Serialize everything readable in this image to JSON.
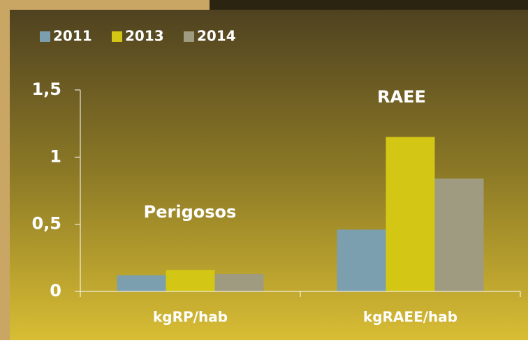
{
  "chart_data": {
    "type": "bar",
    "categories": [
      "kgRP/hab",
      "kgRAEE/hab"
    ],
    "series": [
      {
        "name": "2011",
        "color": "#7b9fae",
        "values": [
          0.12,
          0.46
        ]
      },
      {
        "name": "2013",
        "color": "#d3c614",
        "values": [
          0.16,
          1.15
        ]
      },
      {
        "name": "2014",
        "color": "#9f9b80",
        "values": [
          0.13,
          0.84
        ]
      }
    ],
    "annotations": [
      "Perigosos",
      "RAEE"
    ],
    "ylim": [
      0,
      1.5
    ],
    "yticks": [
      0,
      {
        "value": 0.5,
        "label": "0,5"
      },
      1,
      {
        "value": 1.5,
        "label": "1,5"
      }
    ]
  }
}
